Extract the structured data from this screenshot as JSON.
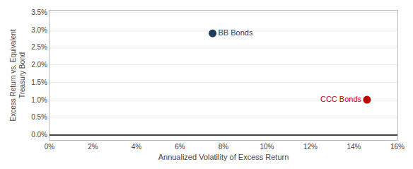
{
  "chart_data": {
    "type": "scatter",
    "xlabel": "Annualized Volatility of Excess Return",
    "ylabel": "Excess Return vs. Equivalent\nTreasury Bond",
    "series": [
      {
        "name": "BB Bonds",
        "color": "#1e3a5f",
        "x": [
          0.075
        ],
        "values": [
          0.029
        ]
      },
      {
        "name": "CCC Bonds",
        "color": "#c00000",
        "x": [
          0.146
        ],
        "values": [
          0.01
        ]
      }
    ],
    "xlim": [
      0,
      0.16
    ],
    "ylim": [
      -0.0015,
      0.0355
    ],
    "xticks": [
      {
        "value": 0,
        "label": "0%"
      },
      {
        "value": 0.02,
        "label": "2%"
      },
      {
        "value": 0.04,
        "label": "4%"
      },
      {
        "value": 0.06,
        "label": "6%"
      },
      {
        "value": 0.08,
        "label": "8%"
      },
      {
        "value": 0.1,
        "label": "10%"
      },
      {
        "value": 0.12,
        "label": "12%"
      },
      {
        "value": 0.14,
        "label": "14%"
      },
      {
        "value": 0.16,
        "label": "16%"
      }
    ],
    "yticks": [
      {
        "value": 0.0,
        "label": "0.0%"
      },
      {
        "value": 0.005,
        "label": "0.5%"
      },
      {
        "value": 0.01,
        "label": "1.0%"
      },
      {
        "value": 0.015,
        "label": "1.5%"
      },
      {
        "value": 0.02,
        "label": "2.0%"
      },
      {
        "value": 0.025,
        "label": "2.5%"
      },
      {
        "value": 0.03,
        "label": "3.0%"
      },
      {
        "value": 0.035,
        "label": "3.5%"
      }
    ],
    "grid": true
  }
}
